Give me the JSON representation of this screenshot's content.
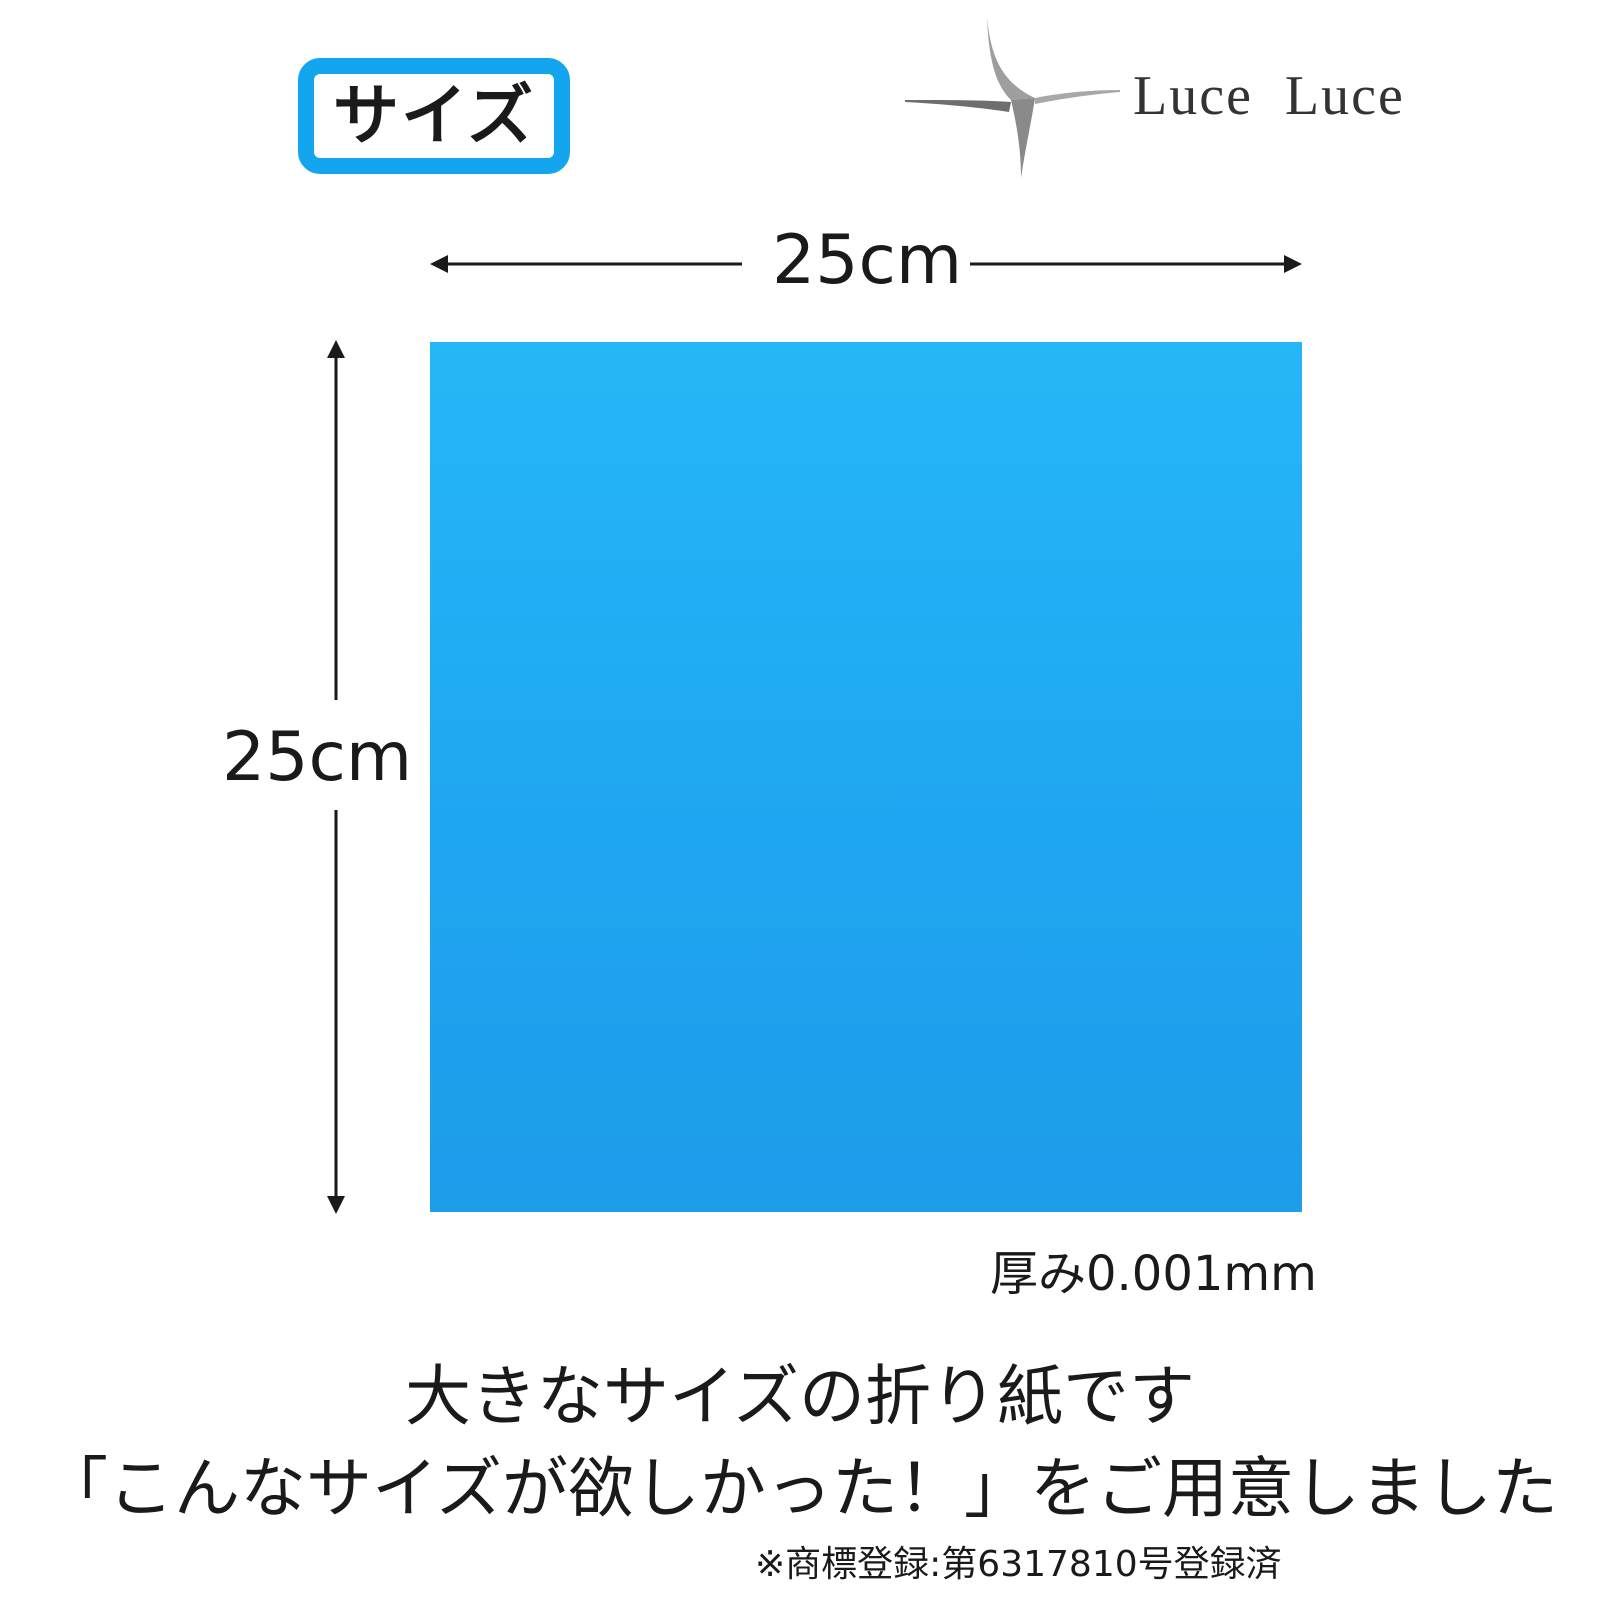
{
  "badge": {
    "label": "サイズ"
  },
  "brand": {
    "name": "Luce  Luce"
  },
  "dimensions": {
    "width": "25cm",
    "height": "25cm"
  },
  "spec": {
    "thickness": "厚み0.001mm"
  },
  "copy": {
    "headline": "大きなサイズの折り紙です",
    "subline": "「こんなサイズが欲しかった！」をご用意しました",
    "trademark": "※商標登録:第6317810号登録済"
  },
  "colors": {
    "accent": "#13a6ee",
    "paper": "#1fa6f0",
    "text": "#1a1a1a"
  },
  "icons": {
    "logo": "luce-luce-swoosh-logo",
    "arrows": "dimension-arrow-icons"
  }
}
